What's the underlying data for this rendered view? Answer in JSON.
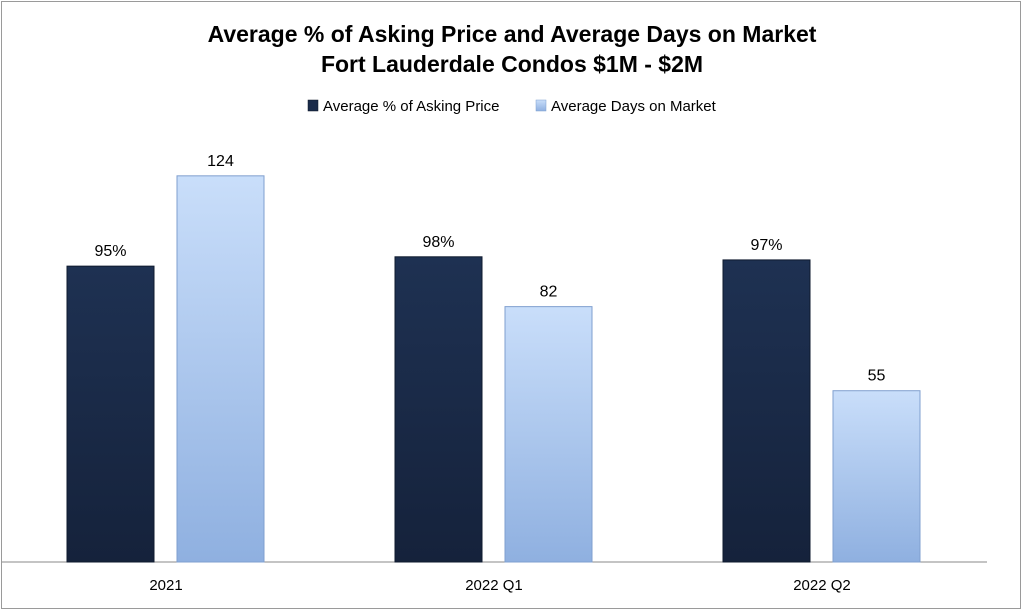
{
  "chart_data": {
    "type": "bar",
    "title": "Average % of Asking Price and Average Days on Market",
    "subtitle": "Fort Lauderdale Condos $1M - $2M",
    "categories": [
      "2021",
      "2022 Q1",
      "2022 Q2"
    ],
    "series": [
      {
        "name": "Average % of Asking Price",
        "values": [
          95,
          98,
          97
        ],
        "labels": [
          "95%",
          "98%",
          "97%"
        ],
        "color": "#1a2b4a"
      },
      {
        "name": "Average Days on Market",
        "values": [
          124,
          82,
          55
        ],
        "labels": [
          "124",
          "82",
          "55"
        ],
        "color": "#b8d2f5"
      }
    ],
    "legend_position": "top-center",
    "grid": false,
    "ylim": [
      0,
      140
    ]
  }
}
